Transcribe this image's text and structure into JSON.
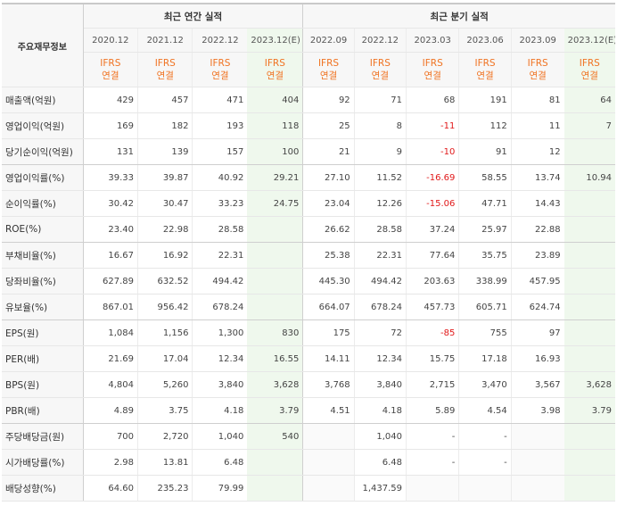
{
  "header": {
    "label": "주요재무정보",
    "annual_title": "최근 연간 실적",
    "quarter_title": "최근 분기 실적",
    "annual_dates": [
      "2020.12",
      "2021.12",
      "2022.12",
      "2023.12(E)"
    ],
    "quarter_dates": [
      "2022.09",
      "2022.12",
      "2023.03",
      "2023.06",
      "2023.09",
      "2023.12(E)"
    ],
    "ifrs_top": "IFRS",
    "ifrs_bottom": "연결"
  },
  "rows": [
    {
      "label": "매출액(억원)",
      "annual": [
        "429",
        "457",
        "471",
        "404"
      ],
      "quarter": [
        "92",
        "71",
        "68",
        "191",
        "81",
        "64"
      ]
    },
    {
      "label": "영업이익(억원)",
      "annual": [
        "169",
        "182",
        "193",
        "118"
      ],
      "quarter": [
        "25",
        "8",
        "-11",
        "112",
        "11",
        "7"
      ]
    },
    {
      "label": "당기순이익(억원)",
      "annual": [
        "131",
        "139",
        "157",
        "100"
      ],
      "quarter": [
        "21",
        "9",
        "-10",
        "91",
        "12",
        ""
      ]
    },
    {
      "label": "영업이익률(%)",
      "annual": [
        "39.33",
        "39.87",
        "40.92",
        "29.21"
      ],
      "quarter": [
        "27.10",
        "11.52",
        "-16.69",
        "58.55",
        "13.74",
        "10.94"
      ]
    },
    {
      "label": "순이익률(%)",
      "annual": [
        "30.42",
        "30.47",
        "33.23",
        "24.75"
      ],
      "quarter": [
        "23.04",
        "12.26",
        "-15.06",
        "47.71",
        "14.43",
        ""
      ]
    },
    {
      "label": "ROE(%)",
      "annual": [
        "23.40",
        "22.98",
        "28.58",
        ""
      ],
      "quarter": [
        "26.62",
        "28.58",
        "37.24",
        "25.97",
        "22.88",
        ""
      ]
    },
    {
      "label": "부채비율(%)",
      "annual": [
        "16.67",
        "16.92",
        "22.31",
        ""
      ],
      "quarter": [
        "25.38",
        "22.31",
        "77.64",
        "35.75",
        "23.89",
        ""
      ]
    },
    {
      "label": "당좌비율(%)",
      "annual": [
        "627.89",
        "632.52",
        "494.42",
        ""
      ],
      "quarter": [
        "445.30",
        "494.42",
        "203.63",
        "338.99",
        "457.95",
        ""
      ]
    },
    {
      "label": "유보율(%)",
      "annual": [
        "867.01",
        "956.42",
        "678.24",
        ""
      ],
      "quarter": [
        "664.07",
        "678.24",
        "457.73",
        "605.71",
        "624.74",
        ""
      ]
    },
    {
      "label": "EPS(원)",
      "annual": [
        "1,084",
        "1,156",
        "1,300",
        "830"
      ],
      "quarter": [
        "175",
        "72",
        "-85",
        "755",
        "97",
        ""
      ]
    },
    {
      "label": "PER(배)",
      "annual": [
        "21.69",
        "17.04",
        "12.34",
        "16.55"
      ],
      "quarter": [
        "14.11",
        "12.34",
        "15.75",
        "17.18",
        "16.93",
        ""
      ]
    },
    {
      "label": "BPS(원)",
      "annual": [
        "4,804",
        "5,260",
        "3,840",
        "3,628"
      ],
      "quarter": [
        "3,768",
        "3,840",
        "2,715",
        "3,470",
        "3,567",
        "3,628"
      ]
    },
    {
      "label": "PBR(배)",
      "annual": [
        "4.89",
        "3.75",
        "4.18",
        "3.79"
      ],
      "quarter": [
        "4.51",
        "4.18",
        "5.89",
        "4.54",
        "3.98",
        "3.79"
      ]
    },
    {
      "label": "주당배당금(원)",
      "annual": [
        "700",
        "2,720",
        "1,040",
        "540"
      ],
      "quarter": [
        "",
        "1,040",
        "-",
        "-",
        "",
        ""
      ]
    },
    {
      "label": "시가배당률(%)",
      "annual": [
        "2.98",
        "13.81",
        "6.48",
        ""
      ],
      "quarter": [
        "",
        "6.48",
        "-",
        "-",
        "",
        ""
      ]
    },
    {
      "label": "배당성향(%)",
      "annual": [
        "64.60",
        "235.23",
        "79.99",
        ""
      ],
      "quarter": [
        "",
        "1,437.59",
        "",
        "",
        "",
        ""
      ]
    }
  ]
}
